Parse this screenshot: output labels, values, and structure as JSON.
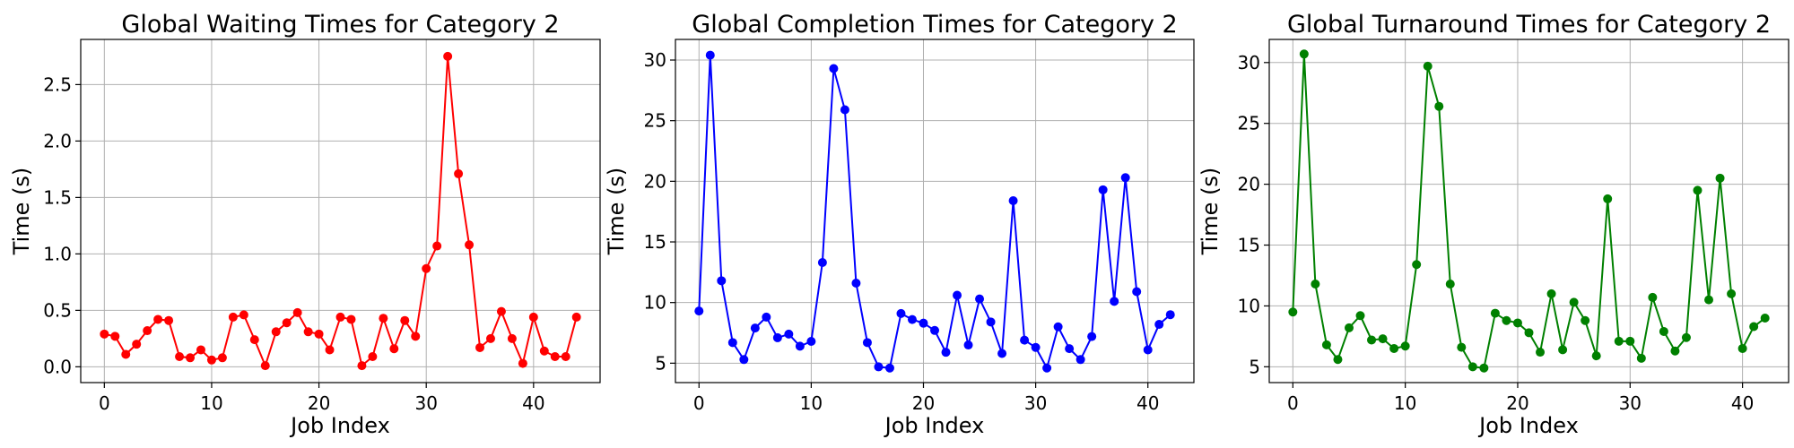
{
  "chart_data": [
    {
      "type": "line",
      "title": "Global Waiting Times for Category 2",
      "xlabel": "Job Index",
      "ylabel": "Time (s)",
      "xlim": [
        -2.2,
        46.2
      ],
      "ylim": [
        -0.14,
        2.9
      ],
      "xticks": [
        0,
        10,
        20,
        30,
        40
      ],
      "yticks": [
        0.0,
        0.5,
        1.0,
        1.5,
        2.0,
        2.5
      ],
      "ytick_labels": [
        "0.0",
        "0.5",
        "1.0",
        "1.5",
        "2.0",
        "2.5"
      ],
      "grid": true,
      "color": "#ff0000",
      "x": [
        0,
        1,
        2,
        3,
        4,
        5,
        6,
        7,
        8,
        9,
        10,
        11,
        12,
        13,
        14,
        15,
        16,
        17,
        18,
        19,
        20,
        21,
        22,
        23,
        24,
        25,
        26,
        27,
        28,
        29,
        30,
        31,
        32,
        33,
        34,
        35,
        36,
        37,
        38,
        39,
        40,
        41,
        42,
        43,
        44
      ],
      "values": [
        0.29,
        0.27,
        0.11,
        0.2,
        0.32,
        0.42,
        0.41,
        0.09,
        0.08,
        0.15,
        0.06,
        0.08,
        0.44,
        0.46,
        0.24,
        0.01,
        0.31,
        0.39,
        0.48,
        0.31,
        0.29,
        0.15,
        0.44,
        0.42,
        0.01,
        0.09,
        0.43,
        0.16,
        0.41,
        0.27,
        0.87,
        1.07,
        2.75,
        1.71,
        1.08,
        0.17,
        0.25,
        0.49,
        0.25,
        0.03,
        0.44,
        0.14,
        0.09,
        0.09,
        0.44
      ]
    },
    {
      "type": "line",
      "title": "Global Completion Times for Category 2",
      "xlabel": "Job Index",
      "ylabel": "Time (s)",
      "xlim": [
        -2.1,
        44.1
      ],
      "ylim": [
        3.4,
        31.7
      ],
      "xticks": [
        0,
        10,
        20,
        30,
        40
      ],
      "yticks": [
        5,
        10,
        15,
        20,
        25,
        30
      ],
      "ytick_labels": [
        "5",
        "10",
        "15",
        "20",
        "25",
        "30"
      ],
      "grid": true,
      "color": "#0000ff",
      "x": [
        0,
        1,
        2,
        3,
        4,
        5,
        6,
        7,
        8,
        9,
        10,
        11,
        12,
        13,
        14,
        15,
        16,
        17,
        18,
        19,
        20,
        21,
        22,
        23,
        24,
        25,
        26,
        27,
        28,
        29,
        30,
        31,
        32,
        33,
        34,
        35,
        36,
        37,
        38,
        39,
        40,
        41,
        42
      ],
      "values": [
        9.3,
        30.4,
        11.8,
        6.7,
        5.3,
        7.9,
        8.8,
        7.1,
        7.4,
        6.4,
        6.8,
        13.3,
        29.3,
        25.9,
        11.6,
        6.7,
        4.7,
        4.6,
        9.1,
        8.6,
        8.3,
        7.7,
        5.9,
        10.6,
        6.5,
        10.3,
        8.4,
        5.8,
        18.4,
        6.9,
        6.3,
        4.6,
        8.0,
        6.2,
        5.3,
        7.2,
        19.3,
        10.1,
        20.3,
        10.9,
        6.1,
        8.2,
        9.0
      ]
    },
    {
      "type": "line",
      "title": "Global Turnaround Times for Category 2",
      "xlabel": "Job Index",
      "ylabel": "Time (s)",
      "xlim": [
        -2.1,
        44.1
      ],
      "ylim": [
        3.7,
        31.9
      ],
      "xticks": [
        0,
        10,
        20,
        30,
        40
      ],
      "yticks": [
        5,
        10,
        15,
        20,
        25,
        30
      ],
      "ytick_labels": [
        "5",
        "10",
        "15",
        "20",
        "25",
        "30"
      ],
      "grid": true,
      "color": "#008000",
      "x": [
        0,
        1,
        2,
        3,
        4,
        5,
        6,
        7,
        8,
        9,
        10,
        11,
        12,
        13,
        14,
        15,
        16,
        17,
        18,
        19,
        20,
        21,
        22,
        23,
        24,
        25,
        26,
        27,
        28,
        29,
        30,
        31,
        32,
        33,
        34,
        35,
        36,
        37,
        38,
        39,
        40,
        41,
        42
      ],
      "values": [
        9.5,
        30.7,
        11.8,
        6.8,
        5.6,
        8.2,
        9.2,
        7.2,
        7.3,
        6.5,
        6.7,
        13.4,
        29.7,
        26.4,
        11.8,
        6.6,
        5.0,
        4.9,
        9.4,
        8.8,
        8.6,
        7.8,
        6.2,
        11.0,
        6.4,
        10.3,
        8.8,
        5.9,
        18.8,
        7.1,
        7.1,
        5.7,
        10.7,
        7.9,
        6.3,
        7.4,
        19.5,
        10.5,
        20.5,
        11.0,
        6.5,
        8.3,
        9.0
      ]
    }
  ]
}
